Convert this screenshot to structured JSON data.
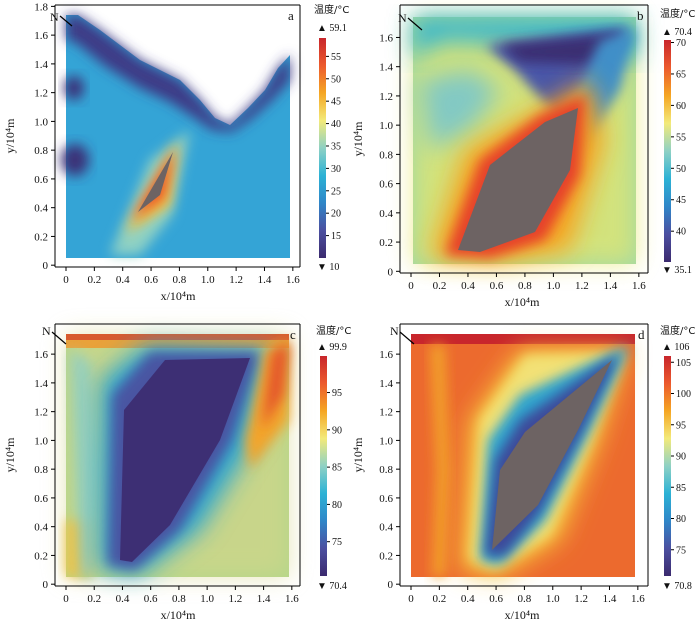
{
  "chart_data": [
    {
      "type": "heatmap",
      "panel_label": "a",
      "north_label": "N",
      "xlabel": "x/10⁴m",
      "ylabel": "y/10⁴m",
      "xlim": [
        -0.1,
        1.65
      ],
      "ylim": [
        -0.05,
        1.77
      ],
      "xticks": [
        "0",
        "0.2",
        "0.4",
        "0.6",
        "0.8",
        "1.0",
        "1.2",
        "1.4",
        "1.6"
      ],
      "yticks": [
        "0",
        "0.2",
        "0.4",
        "0.6",
        "0.8",
        "1.0",
        "1.2",
        "1.4",
        "1.6",
        "1.8"
      ],
      "colorbar": {
        "title": "温度/°C",
        "max_label": "▲ 59.1",
        "min_label": "▼ 10",
        "min": 10,
        "max": 59.1,
        "ticks": [
          15,
          20,
          25,
          30,
          35,
          40,
          45,
          50,
          55
        ]
      }
    },
    {
      "type": "heatmap",
      "panel_label": "b",
      "north_label": "N",
      "xlabel": "x/10⁴m",
      "ylabel": "y/10⁴m",
      "xlim": [
        -0.1,
        1.65
      ],
      "ylim": [
        -0.05,
        1.77
      ],
      "xticks": [
        "0",
        "0.2",
        "0.4",
        "0.6",
        "0.8",
        "1.0",
        "1.2",
        "1.4",
        "1.6"
      ],
      "yticks": [
        "0",
        "0.2",
        "0.4",
        "0.6",
        "0.8",
        "1.0",
        "1.2",
        "1.4",
        "1.6"
      ],
      "colorbar": {
        "title": "温度/°C",
        "max_label": "▲ 70.4",
        "min_label": "▼ 35.1",
        "min": 35.1,
        "max": 70.4,
        "ticks": [
          40,
          45,
          50,
          55,
          60,
          65,
          70
        ]
      }
    },
    {
      "type": "heatmap",
      "panel_label": "c",
      "north_label": "N",
      "xlabel": "x/10⁴m",
      "ylabel": "y/10⁴m",
      "xlim": [
        -0.1,
        1.65
      ],
      "ylim": [
        -0.05,
        1.77
      ],
      "xticks": [
        "0",
        "0.2",
        "0.4",
        "0.6",
        "0.8",
        "1.0",
        "1.2",
        "1.4",
        "1.6"
      ],
      "yticks": [
        "0",
        "0.2",
        "0.4",
        "0.6",
        "0.8",
        "1.0",
        "1.2",
        "1.4",
        "1.6"
      ],
      "colorbar": {
        "title": "温度/°C",
        "max_label": "▲ 99.9",
        "min_label": "▼ 70.4",
        "min": 70.4,
        "max": 99.9,
        "ticks": [
          75,
          80,
          85,
          90,
          95
        ]
      }
    },
    {
      "type": "heatmap",
      "panel_label": "d",
      "north_label": "N",
      "xlabel": "x/10⁴m",
      "ylabel": "y/10⁴m",
      "xlim": [
        -0.1,
        1.65
      ],
      "ylim": [
        -0.05,
        1.77
      ],
      "xticks": [
        "0",
        "0.2",
        "0.4",
        "0.6",
        "0.8",
        "1.0",
        "1.2",
        "1.4",
        "1.6"
      ],
      "yticks": [
        "0",
        "0.2",
        "0.4",
        "0.6",
        "0.8",
        "1.0",
        "1.2",
        "1.4",
        "1.6"
      ],
      "colorbar": {
        "title": "温度/°C",
        "max_label": "▲ 106",
        "min_label": "▼ 70.8",
        "min": 70.8,
        "max": 106,
        "ticks": [
          75,
          80,
          85,
          90,
          95,
          100,
          105
        ]
      }
    }
  ],
  "colors": {
    "scale": [
      "#3b2a6e",
      "#4b4fa0",
      "#2f86c8",
      "#2cb2d5",
      "#8fd1c4",
      "#f3ea7a",
      "#f5a623",
      "#ec5a2d",
      "#c8262c"
    ],
    "core": "#6d6363"
  }
}
